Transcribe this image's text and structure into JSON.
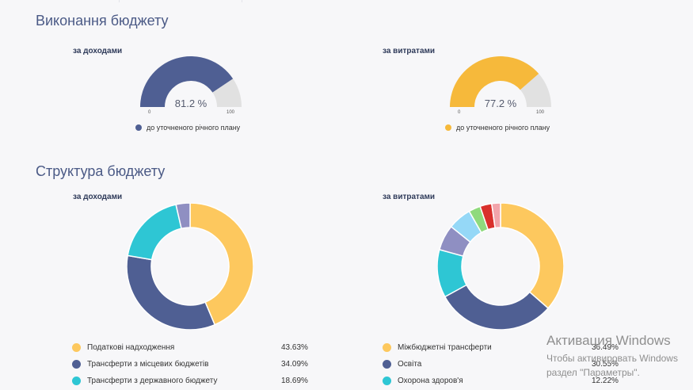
{
  "colors": {
    "navy": "#4f5f93",
    "yellow": "#f6b93b",
    "gray": "#e1e1e1",
    "teal": "#2ec6d4",
    "light_yellow": "#fdc85e",
    "purple": "#8f8fc2",
    "light_blue": "#95d8f7",
    "green": "#8fda7d",
    "red": "#d9302c",
    "pink": "#f2a4ab"
  },
  "execution": {
    "title": "Виконання бюджету",
    "income": {
      "label": "за доходами",
      "value_text": "81.2 %",
      "percent": 81.2,
      "min_label": "0",
      "max_label": "100",
      "legend": "до уточненого річного плану"
    },
    "expenses": {
      "label": "за витратами",
      "value_text": "77.2 %",
      "percent": 77.2,
      "min_label": "0",
      "max_label": "100",
      "legend": "до уточненого річного плану"
    }
  },
  "structure": {
    "title": "Структура бюджету",
    "income": {
      "label": "за доходами",
      "legend": [
        {
          "name": "Податкові надходження",
          "value": "43.63%"
        },
        {
          "name": "Трансферти з місцевих бюджетів",
          "value": "34.09%"
        },
        {
          "name": "Трансферти з державного бюджету",
          "value": "18.69%"
        }
      ]
    },
    "expenses": {
      "label": "за витратами",
      "legend": [
        {
          "name": "Міжбюджетні трансферти",
          "value": "36.49%"
        },
        {
          "name": "Освіта",
          "value": "30.55%"
        },
        {
          "name": "Охорона здоров'я",
          "value": "12.22%"
        }
      ]
    }
  },
  "chart_data": [
    {
      "type": "pie",
      "subtitle": "за доходами",
      "categories": [
        "Податкові надходження",
        "Трансферти з місцевих бюджетів",
        "Трансферти з державного бюджету",
        ""
      ],
      "values": [
        43.63,
        34.09,
        18.69,
        3.59
      ],
      "colors": [
        "#fdc85e",
        "#4f5f93",
        "#2ec6d4",
        "#8f8fc2"
      ]
    },
    {
      "type": "pie",
      "subtitle": "за витратами",
      "categories": [
        "Міжбюджетні трансферти",
        "Освіта",
        "Охорона здоров'я",
        "",
        "",
        "",
        "",
        ""
      ],
      "values": [
        36.49,
        30.55,
        12.22,
        6.5,
        6.0,
        3.0,
        3.0,
        2.24
      ],
      "colors": [
        "#fdc85e",
        "#4f5f93",
        "#2ec6d4",
        "#8f8fc2",
        "#95d8f7",
        "#8fda7d",
        "#d9302c",
        "#f2a4ab"
      ]
    }
  ],
  "watermark": {
    "title": "Активация Windows",
    "line1": "Чтобы активировать Windows",
    "line2": "раздел \"Параметры\"."
  }
}
